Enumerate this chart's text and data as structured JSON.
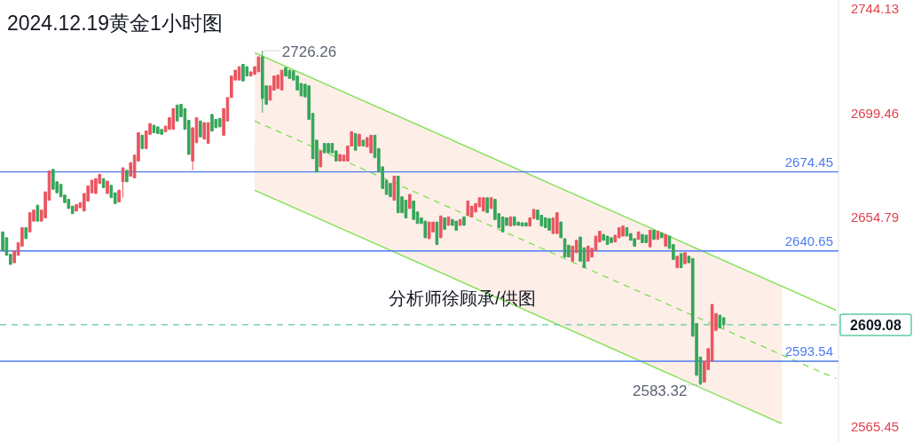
{
  "chart_data": {
    "type": "candlestick",
    "title": "2024.12.19黄金1小时图",
    "categories": [
      null,
      null,
      null,
      null,
      null,
      null,
      null,
      null,
      null,
      null,
      null,
      null,
      null,
      null,
      null,
      null,
      null,
      null,
      null,
      null,
      null,
      null,
      null,
      null,
      null,
      null,
      null,
      null,
      null,
      null,
      null,
      null,
      null,
      null,
      null,
      null,
      null,
      null,
      null,
      null,
      null,
      null,
      null,
      null,
      null,
      null,
      null,
      null,
      null,
      null,
      null,
      null,
      null,
      null,
      null,
      null,
      null,
      null,
      null,
      null,
      null,
      null,
      null,
      null,
      null,
      null,
      null,
      null,
      null,
      null,
      null,
      null,
      null,
      null,
      null,
      null,
      null,
      null,
      null,
      null,
      null,
      null,
      null,
      null,
      null,
      null,
      null,
      null,
      null,
      null,
      null,
      null,
      null,
      null,
      null,
      null,
      null,
      null,
      null,
      null,
      null,
      null,
      null,
      null,
      null,
      null,
      null,
      null,
      null,
      null,
      null,
      null,
      null,
      null,
      null,
      null,
      null,
      null,
      null,
      null,
      null,
      null,
      null,
      null,
      null,
      null,
      null,
      null,
      null,
      null,
      null,
      null,
      null,
      null,
      null,
      null,
      null,
      null,
      null,
      null,
      null,
      null,
      null,
      null,
      null,
      null,
      null,
      null,
      null,
      null,
      null,
      null,
      null,
      null,
      null,
      null,
      null,
      null,
      null,
      null,
      null,
      null,
      null,
      null,
      null,
      null,
      null,
      null,
      null,
      null,
      null,
      null,
      null,
      null,
      null,
      null,
      null,
      null,
      null,
      null,
      null,
      null,
      null,
      null,
      null,
      null,
      null,
      null,
      null,
      null,
      null,
      null,
      null,
      null,
      null,
      null,
      null,
      null,
      null,
      null,
      null,
      null,
      null,
      null,
      null,
      null,
      null,
      null,
      null,
      null,
      null,
      null,
      null,
      null,
      null,
      null
    ],
    "ohlc": [
      [
        2648.8,
        2648.8,
        2640.9,
        2640.9
      ],
      [
        2646.3,
        2646.3,
        2638.8,
        2638.8
      ],
      [
        2639.2,
        2639.2,
        2634.9,
        2634.9
      ],
      [
        2635.6,
        2640.6,
        2635.6,
        2640.6
      ],
      [
        2638.8,
        2644.2,
        2638.8,
        2644.2
      ],
      [
        2642.7,
        2650.6,
        2642.7,
        2650.6
      ],
      [
        2650.6,
        2650.6,
        2645.9,
        2645.9
      ],
      [
        2648.8,
        2657.0,
        2648.8,
        2657.0
      ],
      [
        2653.4,
        2658.1,
        2653.4,
        2658.1
      ],
      [
        2660.2,
        2660.2,
        2653.4,
        2653.4
      ],
      [
        2653.4,
        2658.1,
        2653.4,
        2658.1
      ],
      [
        2654.8,
        2665.9,
        2654.8,
        2665.9
      ],
      [
        2662.3,
        2674.8,
        2662.3,
        2674.8
      ],
      [
        2675.5,
        2675.5,
        2667.0,
        2667.0
      ],
      [
        2670.2,
        2670.2,
        2665.5,
        2665.5
      ],
      [
        2669.1,
        2669.1,
        2663.8,
        2663.8
      ],
      [
        2664.5,
        2664.5,
        2661.3,
        2661.3
      ],
      [
        2662.7,
        2662.7,
        2658.8,
        2658.8
      ],
      [
        2659.8,
        2659.8,
        2656.6,
        2656.6
      ],
      [
        2657.7,
        2660.5,
        2657.7,
        2660.5
      ],
      [
        2659.1,
        2661.3,
        2659.1,
        2661.3
      ],
      [
        2657.7,
        2665.2,
        2657.7,
        2665.2
      ],
      [
        2662.0,
        2668.4,
        2662.0,
        2668.4
      ],
      [
        2665.5,
        2670.9,
        2665.5,
        2670.9
      ],
      [
        2665.2,
        2671.6,
        2665.2,
        2671.6
      ],
      [
        2669.5,
        2673.4,
        2669.5,
        2673.4
      ],
      [
        2671.6,
        2671.6,
        2667.7,
        2667.7
      ],
      [
        2665.2,
        2670.5,
        2665.2,
        2670.5
      ],
      [
        2668.7,
        2668.7,
        2663.4,
        2663.4
      ],
      [
        2665.5,
        2665.5,
        2660.9,
        2660.9
      ],
      [
        2661.6,
        2666.6,
        2661.6,
        2666.6
      ],
      [
        2670.2,
        2676.2,
        2663.4,
        2676.2
      ],
      [
        2675.1,
        2675.1,
        2670.2,
        2670.2
      ],
      [
        2672.6,
        2678.4,
        2672.6,
        2678.4
      ],
      [
        2671.9,
        2681.6,
        2671.9,
        2681.6
      ],
      [
        2679.1,
        2691.2,
        2679.1,
        2691.2
      ],
      [
        2690.1,
        2690.1,
        2684.4,
        2684.4
      ],
      [
        2684.4,
        2691.9,
        2684.4,
        2691.9
      ],
      [
        2690.5,
        2695.1,
        2690.5,
        2695.1
      ],
      [
        2694.4,
        2694.4,
        2691.2,
        2691.2
      ],
      [
        2693.7,
        2693.7,
        2690.8,
        2690.8
      ],
      [
        2692.6,
        2692.6,
        2690.5,
        2690.5
      ],
      [
        2691.6,
        2694.0,
        2691.6,
        2694.0
      ],
      [
        2692.6,
        2697.6,
        2692.6,
        2697.6
      ],
      [
        2692.6,
        2701.5,
        2692.6,
        2701.5
      ],
      [
        2703.0,
        2703.0,
        2696.2,
        2696.2
      ],
      [
        2703.3,
        2703.3,
        2698.0,
        2698.0
      ],
      [
        2701.5,
        2701.5,
        2692.6,
        2692.6
      ],
      [
        2696.5,
        2696.5,
        2681.9,
        2681.9
      ],
      [
        2679.1,
        2693.3,
        2675.1,
        2693.3
      ],
      [
        2686.9,
        2697.6,
        2686.9,
        2697.6
      ],
      [
        2696.2,
        2696.2,
        2689.4,
        2689.4
      ],
      [
        2688.4,
        2695.5,
        2688.4,
        2695.5
      ],
      [
        2686.6,
        2695.5,
        2686.6,
        2695.5
      ],
      [
        2699.0,
        2699.0,
        2691.9,
        2691.9
      ],
      [
        2696.9,
        2696.9,
        2693.3,
        2693.3
      ],
      [
        2697.3,
        2697.3,
        2693.7,
        2693.7
      ],
      [
        2690.1,
        2701.5,
        2690.1,
        2701.5
      ],
      [
        2696.2,
        2706.2,
        2696.2,
        2706.2
      ],
      [
        2706.2,
        2715.4,
        2706.2,
        2715.4
      ],
      [
        2713.7,
        2717.9,
        2713.7,
        2717.9
      ],
      [
        2713.7,
        2719.4,
        2713.7,
        2719.4
      ],
      [
        2720.4,
        2720.4,
        2713.3,
        2713.3
      ],
      [
        2719.4,
        2719.4,
        2715.4,
        2715.4
      ],
      [
        2715.4,
        2717.2,
        2715.4,
        2717.2
      ],
      [
        2716.1,
        2719.4,
        2716.1,
        2719.4
      ],
      [
        2717.2,
        2723.6,
        2717.2,
        2723.6
      ],
      [
        2723.6,
        2726.26,
        2699.7,
        2705.8
      ],
      [
        2711.2,
        2711.2,
        2703.3,
        2703.3
      ],
      [
        2705.1,
        2711.2,
        2705.1,
        2711.2
      ],
      [
        2709.4,
        2715.4,
        2709.4,
        2715.4
      ],
      [
        2710.1,
        2715.8,
        2710.1,
        2715.8
      ],
      [
        2709.4,
        2717.9,
        2709.4,
        2717.9
      ],
      [
        2719.0,
        2719.0,
        2715.4,
        2715.4
      ],
      [
        2717.9,
        2717.9,
        2714.4,
        2714.4
      ],
      [
        2717.6,
        2717.6,
        2713.7,
        2713.7
      ],
      [
        2715.4,
        2715.4,
        2709.4,
        2709.4
      ],
      [
        2712.2,
        2712.2,
        2706.9,
        2706.9
      ],
      [
        2711.9,
        2711.9,
        2706.5,
        2706.5
      ],
      [
        2711.2,
        2711.2,
        2696.9,
        2696.9
      ],
      [
        2699.4,
        2699.4,
        2680.1,
        2680.1
      ],
      [
        2688.0,
        2688.0,
        2674.4,
        2674.4
      ],
      [
        2676.6,
        2683.4,
        2676.6,
        2683.4
      ],
      [
        2686.6,
        2686.6,
        2682.6,
        2682.6
      ],
      [
        2686.6,
        2686.6,
        2682.6,
        2682.6
      ],
      [
        2686.6,
        2686.6,
        2682.6,
        2682.6
      ],
      [
        2683.4,
        2683.4,
        2679.1,
        2679.1
      ],
      [
        2679.1,
        2681.9,
        2679.1,
        2681.9
      ],
      [
        2679.1,
        2681.6,
        2679.1,
        2681.6
      ],
      [
        2679.1,
        2685.5,
        2679.1,
        2685.5
      ],
      [
        2685.5,
        2691.6,
        2685.5,
        2691.6
      ],
      [
        2690.8,
        2690.8,
        2683.7,
        2683.7
      ],
      [
        2685.5,
        2690.5,
        2685.5,
        2690.5
      ],
      [
        2688.0,
        2688.0,
        2685.5,
        2685.5
      ],
      [
        2685.1,
        2689.1,
        2685.1,
        2689.1
      ],
      [
        2682.6,
        2690.1,
        2682.6,
        2690.1
      ],
      [
        2690.1,
        2690.1,
        2680.5,
        2680.5
      ],
      [
        2684.4,
        2684.4,
        2674.4,
        2674.4
      ],
      [
        2676.6,
        2676.6,
        2667.3,
        2667.3
      ],
      [
        2670.9,
        2670.9,
        2664.8,
        2664.8
      ],
      [
        2669.5,
        2669.5,
        2663.8,
        2663.8
      ],
      [
        2662.3,
        2672.6,
        2662.3,
        2672.6
      ],
      [
        2672.6,
        2672.6,
        2657.0,
        2657.0
      ],
      [
        2663.8,
        2663.8,
        2657.0,
        2657.0
      ],
      [
        2662.3,
        2662.3,
        2654.8,
        2654.8
      ],
      [
        2658.8,
        2664.8,
        2658.8,
        2664.8
      ],
      [
        2662.0,
        2662.0,
        2654.1,
        2654.1
      ],
      [
        2657.3,
        2657.3,
        2652.4,
        2652.4
      ],
      [
        2654.8,
        2654.8,
        2652.4,
        2652.4
      ],
      [
        2653.4,
        2653.4,
        2646.3,
        2646.3
      ],
      [
        2645.9,
        2653.0,
        2645.9,
        2653.0
      ],
      [
        2648.8,
        2653.0,
        2648.8,
        2653.0
      ],
      [
        2653.0,
        2653.0,
        2643.4,
        2643.4
      ],
      [
        2646.3,
        2655.6,
        2646.3,
        2655.6
      ],
      [
        2654.8,
        2654.8,
        2649.9,
        2649.9
      ],
      [
        2651.6,
        2655.2,
        2651.6,
        2655.2
      ],
      [
        2654.1,
        2654.1,
        2651.6,
        2651.6
      ],
      [
        2653.4,
        2653.4,
        2649.5,
        2649.5
      ],
      [
        2651.6,
        2654.1,
        2651.6,
        2654.1
      ],
      [
        2655.2,
        2655.2,
        2651.6,
        2651.6
      ],
      [
        2655.9,
        2662.0,
        2655.9,
        2662.0
      ],
      [
        2655.2,
        2659.8,
        2655.2,
        2659.8
      ],
      [
        2657.3,
        2660.9,
        2657.3,
        2660.9
      ],
      [
        2659.5,
        2663.4,
        2659.5,
        2663.4
      ],
      [
        2657.7,
        2663.4,
        2657.7,
        2663.4
      ],
      [
        2663.4,
        2663.4,
        2657.0,
        2657.0
      ],
      [
        2658.8,
        2663.4,
        2658.8,
        2663.4
      ],
      [
        2662.7,
        2662.7,
        2654.1,
        2654.1
      ],
      [
        2656.6,
        2656.6,
        2650.6,
        2650.6
      ],
      [
        2655.2,
        2655.2,
        2648.8,
        2648.8
      ],
      [
        2654.8,
        2654.8,
        2651.6,
        2651.6
      ],
      [
        2651.3,
        2655.2,
        2651.3,
        2655.2
      ],
      [
        2655.2,
        2655.2,
        2651.6,
        2651.6
      ],
      [
        2653.0,
        2653.0,
        2651.6,
        2651.6
      ],
      [
        2652.7,
        2652.7,
        2651.3,
        2651.3
      ],
      [
        2652.7,
        2652.7,
        2651.3,
        2651.3
      ],
      [
        2651.3,
        2654.8,
        2651.3,
        2654.8
      ],
      [
        2654.5,
        2658.4,
        2654.5,
        2658.4
      ],
      [
        2658.1,
        2658.1,
        2654.1,
        2654.1
      ],
      [
        2655.9,
        2655.9,
        2651.3,
        2651.3
      ],
      [
        2654.8,
        2654.8,
        2650.6,
        2650.6
      ],
      [
        2654.5,
        2654.5,
        2649.5,
        2649.5
      ],
      [
        2648.1,
        2654.8,
        2648.1,
        2654.8
      ],
      [
        2648.1,
        2657.0,
        2648.1,
        2657.0
      ],
      [
        2653.0,
        2653.0,
        2646.3,
        2646.3
      ],
      [
        2645.9,
        2645.9,
        2638.1,
        2638.1
      ],
      [
        2643.1,
        2643.1,
        2638.1,
        2638.1
      ],
      [
        2636.3,
        2642.7,
        2636.3,
        2642.7
      ],
      [
        2639.9,
        2645.2,
        2639.9,
        2645.2
      ],
      [
        2646.6,
        2646.6,
        2636.3,
        2636.3
      ],
      [
        2642.0,
        2642.0,
        2633.5,
        2633.5
      ],
      [
        2636.3,
        2642.7,
        2636.3,
        2642.7
      ],
      [
        2638.1,
        2641.7,
        2638.1,
        2641.7
      ],
      [
        2640.9,
        2647.0,
        2640.9,
        2647.0
      ],
      [
        2644.5,
        2649.1,
        2644.5,
        2649.1
      ],
      [
        2647.7,
        2647.7,
        2645.2,
        2645.2
      ],
      [
        2647.0,
        2647.0,
        2643.4,
        2643.4
      ],
      [
        2646.3,
        2646.3,
        2644.2,
        2644.2
      ],
      [
        2644.5,
        2647.4,
        2644.5,
        2647.4
      ],
      [
        2646.3,
        2650.6,
        2646.3,
        2650.6
      ],
      [
        2647.0,
        2651.3,
        2647.0,
        2651.3
      ],
      [
        2650.6,
        2650.6,
        2647.0,
        2647.0
      ],
      [
        2648.1,
        2648.1,
        2645.2,
        2645.2
      ],
      [
        2645.9,
        2645.9,
        2642.7,
        2642.7
      ],
      [
        2645.6,
        2648.8,
        2645.6,
        2648.8
      ],
      [
        2647.7,
        2647.7,
        2644.2,
        2644.2
      ],
      [
        2647.4,
        2647.4,
        2644.2,
        2644.2
      ],
      [
        2642.4,
        2649.5,
        2642.4,
        2649.5
      ],
      [
        2649.5,
        2649.5,
        2645.6,
        2645.6
      ],
      [
        2645.6,
        2649.1,
        2645.6,
        2649.1
      ],
      [
        2648.4,
        2648.4,
        2646.3,
        2646.3
      ],
      [
        2642.7,
        2647.7,
        2642.7,
        2647.7
      ],
      [
        2647.0,
        2647.0,
        2641.7,
        2641.7
      ],
      [
        2643.4,
        2643.4,
        2637.0,
        2637.0
      ],
      [
        2633.5,
        2638.4,
        2633.5,
        2638.4
      ],
      [
        2639.5,
        2639.5,
        2633.5,
        2633.5
      ],
      [
        2635.2,
        2639.9,
        2635.2,
        2639.9
      ],
      [
        2638.4,
        2638.4,
        2635.6,
        2635.6
      ],
      [
        2637.4,
        2637.4,
        2604.2,
        2604.2
      ],
      [
        2609.6,
        2609.6,
        2587.5,
        2587.5
      ],
      [
        2595.3,
        2595.3,
        2583.32,
        2583.9
      ],
      [
        2584.6,
        2593.5,
        2584.6,
        2593.5
      ],
      [
        2590.0,
        2598.9,
        2590.0,
        2598.9
      ],
      [
        2593.5,
        2617.8,
        2593.5,
        2617.8
      ],
      [
        2606.7,
        2613.9,
        2606.7,
        2613.9
      ],
      [
        2613.2,
        2613.2,
        2607.8,
        2607.8
      ],
      [
        2612.1,
        2612.1,
        2607.4,
        2609.08
      ],
      null,
      null,
      null,
      null,
      null,
      null,
      null,
      null,
      null,
      null,
      null,
      null,
      null,
      null,
      null,
      null,
      null,
      null,
      null,
      null,
      null,
      null,
      null,
      null,
      null,
      null,
      null,
      null,
      null
    ],
    "series": [
      {
        "type": "line",
        "color": "#7de04e",
        "line_style": "solid",
        "values": [
          null,
          null,
          null,
          null,
          null,
          null,
          null,
          null,
          null,
          null,
          null,
          null,
          null,
          null,
          null,
          null,
          null,
          null,
          null,
          null,
          null,
          null,
          null,
          null,
          null,
          null,
          null,
          null,
          null,
          null,
          null,
          null,
          null,
          null,
          null,
          null,
          null,
          null,
          null,
          null,
          null,
          null,
          null,
          null,
          null,
          null,
          null,
          null,
          null,
          null,
          null,
          null,
          null,
          null,
          null,
          null,
          null,
          null,
          null,
          null,
          null,
          null,
          null,
          null,
          null,
          2725.4,
          null,
          null,
          null,
          null,
          null,
          null,
          null,
          null,
          null,
          null,
          null,
          null,
          null,
          null,
          null,
          null,
          null,
          null,
          null,
          null,
          null,
          null,
          null,
          null,
          null,
          null,
          null,
          null,
          null,
          null,
          null,
          null,
          null,
          null,
          null,
          null,
          null,
          null,
          null,
          null,
          null,
          null,
          null,
          null,
          null,
          null,
          null,
          null,
          null,
          null,
          null,
          null,
          null,
          null,
          null,
          null,
          null,
          null,
          null,
          null,
          null,
          null,
          null,
          null,
          null,
          null,
          null,
          null,
          null,
          null,
          null,
          null,
          null,
          null,
          null,
          null,
          null,
          null,
          null,
          null,
          null,
          null,
          null,
          null,
          null,
          null,
          null,
          null,
          null,
          null,
          null,
          null,
          null,
          null,
          null,
          null,
          null,
          null,
          null,
          null,
          null,
          null,
          null,
          null,
          null,
          null,
          null,
          null,
          null,
          null,
          null,
          null,
          null,
          null,
          null,
          null,
          null,
          null,
          null,
          null,
          null,
          null,
          null,
          null,
          null,
          null,
          null,
          null,
          null,
          null,
          null,
          null,
          null,
          null,
          null,
          null,
          null,
          null,
          null,
          null,
          null,
          null,
          null,
          null,
          null,
          null,
          null,
          null,
          null,
          2615.3
        ]
      },
      {
        "type": "line",
        "color": "#7de04e",
        "line_style": "dashed",
        "values": [
          null,
          null,
          null,
          null,
          null,
          null,
          null,
          null,
          null,
          null,
          null,
          null,
          null,
          null,
          null,
          null,
          null,
          null,
          null,
          null,
          null,
          null,
          null,
          null,
          null,
          null,
          null,
          null,
          null,
          null,
          null,
          null,
          null,
          null,
          null,
          null,
          null,
          null,
          null,
          null,
          null,
          null,
          null,
          null,
          null,
          null,
          null,
          null,
          null,
          null,
          null,
          null,
          null,
          null,
          null,
          null,
          null,
          null,
          null,
          null,
          null,
          null,
          null,
          null,
          null,
          2696.2,
          null,
          null,
          null,
          null,
          null,
          null,
          null,
          null,
          null,
          null,
          null,
          null,
          null,
          null,
          null,
          null,
          null,
          null,
          null,
          null,
          null,
          null,
          null,
          null,
          null,
          null,
          null,
          null,
          null,
          null,
          null,
          null,
          null,
          null,
          null,
          null,
          null,
          null,
          null,
          null,
          null,
          null,
          null,
          null,
          null,
          null,
          null,
          null,
          null,
          null,
          null,
          null,
          null,
          null,
          null,
          null,
          null,
          null,
          null,
          null,
          null,
          null,
          null,
          null,
          null,
          null,
          null,
          null,
          null,
          null,
          null,
          null,
          null,
          null,
          null,
          null,
          null,
          null,
          null,
          null,
          null,
          null,
          null,
          null,
          null,
          null,
          null,
          null,
          null,
          null,
          null,
          null,
          null,
          null,
          null,
          null,
          null,
          null,
          null,
          null,
          null,
          null,
          null,
          null,
          null,
          null,
          null,
          null,
          null,
          null,
          null,
          null,
          null,
          null,
          null,
          null,
          null,
          null,
          null,
          null,
          null,
          null,
          null,
          null,
          null,
          null,
          null,
          null,
          null,
          null,
          null,
          null,
          null,
          null,
          null,
          2596.2,
          null,
          null,
          null,
          null,
          null,
          null,
          null,
          null,
          null,
          null,
          null,
          null,
          null,
          2586.1
        ],
        "upper": [
          null,
          null,
          null,
          null,
          null,
          null,
          null,
          null,
          null,
          null,
          null,
          null,
          null,
          null,
          null,
          null,
          null,
          null,
          null,
          null,
          null,
          null,
          null,
          null,
          null,
          null,
          null,
          null,
          null,
          null,
          null,
          null,
          null,
          null,
          null,
          null,
          null,
          null,
          null,
          null,
          null,
          null,
          null,
          null,
          null,
          null,
          null,
          null,
          null,
          null,
          null,
          null,
          null,
          null,
          null,
          null,
          null,
          null,
          null,
          null,
          null,
          null,
          null,
          null,
          null,
          2725.4,
          null,
          null,
          null,
          null,
          null,
          null,
          null,
          null,
          null,
          null,
          null,
          null,
          null,
          null,
          null,
          null,
          null,
          null,
          null,
          null,
          null,
          null,
          null,
          null,
          null,
          null,
          null,
          null,
          null,
          null,
          null,
          null,
          null,
          null,
          null,
          null,
          null,
          null,
          null,
          null,
          null,
          null,
          null,
          null,
          null,
          null,
          null,
          null,
          null,
          null,
          null,
          null,
          null,
          null,
          null,
          null,
          null,
          null,
          null,
          null,
          null,
          null,
          null,
          null,
          null,
          null,
          null,
          null,
          null,
          null,
          null,
          null,
          null,
          null,
          null,
          null,
          null,
          null,
          null,
          null,
          null,
          null,
          null,
          null,
          null,
          null,
          null,
          null,
          null,
          null,
          null,
          null,
          null,
          null,
          null,
          null,
          null,
          null,
          null,
          null,
          null,
          null,
          null,
          null,
          null,
          null,
          null,
          null,
          null,
          null,
          null,
          null,
          null,
          null,
          null,
          null,
          null,
          null,
          null,
          null,
          null,
          null,
          null,
          null,
          null,
          null,
          null,
          null,
          null,
          null,
          null,
          null,
          null,
          null,
          null,
          2625.4,
          null,
          null,
          null,
          null,
          null,
          null,
          null,
          null,
          null,
          null,
          null,
          null,
          null,
          null
        ],
        "lower": [
          null,
          null,
          null,
          null,
          null,
          null,
          null,
          null,
          null,
          null,
          null,
          null,
          null,
          null,
          null,
          null,
          null,
          null,
          null,
          null,
          null,
          null,
          null,
          null,
          null,
          null,
          null,
          null,
          null,
          null,
          null,
          null,
          null,
          null,
          null,
          null,
          null,
          null,
          null,
          null,
          null,
          null,
          null,
          null,
          null,
          null,
          null,
          null,
          null,
          null,
          null,
          null,
          null,
          null,
          null,
          null,
          null,
          null,
          null,
          null,
          null,
          null,
          null,
          null,
          null,
          2666.6,
          null,
          null,
          null,
          null,
          null,
          null,
          null,
          null,
          null,
          null,
          null,
          null,
          null,
          null,
          null,
          null,
          null,
          null,
          null,
          null,
          null,
          null,
          null,
          null,
          null,
          null,
          null,
          null,
          null,
          null,
          null,
          null,
          null,
          null,
          null,
          null,
          null,
          null,
          null,
          null,
          null,
          null,
          null,
          null,
          null,
          null,
          null,
          null,
          null,
          null,
          null,
          null,
          null,
          null,
          null,
          null,
          null,
          null,
          null,
          null,
          null,
          null,
          null,
          null,
          null,
          null,
          null,
          null,
          null,
          null,
          null,
          null,
          null,
          null,
          null,
          null,
          null,
          null,
          null,
          null,
          null,
          null,
          null,
          null,
          null,
          null,
          null,
          null,
          null,
          null,
          null,
          null,
          null,
          null,
          null,
          null,
          null,
          null,
          null,
          null,
          null,
          null,
          null,
          null,
          null,
          null,
          null,
          null,
          null,
          null,
          null,
          null,
          null,
          null,
          null,
          null,
          null,
          null,
          null,
          null,
          null,
          null,
          null,
          null,
          null,
          null,
          null,
          null,
          null,
          null,
          null,
          null,
          null,
          null,
          null,
          2566.8,
          null,
          null,
          null,
          null,
          null,
          null,
          null,
          null,
          null,
          null,
          null,
          null,
          null,
          null
        ]
      },
      {
        "type": "line",
        "color": "#7de04e",
        "line_style": "solid",
        "values": [
          null,
          null,
          null,
          null,
          null,
          null,
          null,
          null,
          null,
          null,
          null,
          null,
          null,
          null,
          null,
          null,
          null,
          null,
          null,
          null,
          null,
          null,
          null,
          null,
          null,
          null,
          null,
          null,
          null,
          null,
          null,
          null,
          null,
          null,
          null,
          null,
          null,
          null,
          null,
          null,
          null,
          null,
          null,
          null,
          null,
          null,
          null,
          null,
          null,
          null,
          null,
          null,
          null,
          null,
          null,
          null,
          null,
          null,
          null,
          null,
          null,
          null,
          null,
          null,
          null,
          2666.6,
          null,
          null,
          null,
          null,
          null,
          null,
          null,
          null,
          null,
          null,
          null,
          null,
          null,
          null,
          null,
          null,
          null,
          null,
          null,
          null,
          null,
          null,
          null,
          null,
          null,
          null,
          null,
          null,
          null,
          null,
          null,
          null,
          null,
          null,
          null,
          null,
          null,
          null,
          null,
          null,
          null,
          null,
          null,
          null,
          null,
          null,
          null,
          null,
          null,
          null,
          null,
          null,
          null,
          null,
          null,
          null,
          null,
          null,
          null,
          null,
          null,
          null,
          null,
          null,
          null,
          null,
          null,
          null,
          null,
          null,
          null,
          null,
          null,
          null,
          null,
          null,
          null,
          null,
          null,
          null,
          null,
          null,
          null,
          null,
          null,
          null,
          null,
          null,
          null,
          null,
          null,
          null,
          null,
          null,
          null,
          null,
          null,
          null,
          null,
          null,
          null,
          null,
          null,
          null,
          null,
          null,
          null,
          null,
          null,
          null,
          null,
          null,
          null,
          null,
          null,
          null,
          null,
          null,
          null,
          null,
          null,
          null,
          null,
          null,
          null,
          null,
          null,
          null,
          null,
          null,
          null,
          null,
          null,
          null,
          null,
          2566.8,
          null,
          null,
          null,
          null,
          null,
          null,
          null,
          null,
          null,
          null,
          null,
          null,
          null,
          null
        ]
      }
    ],
    "ylim": [
      2559.0,
      2747.9
    ],
    "yticks": [
      2744.13,
      2699.46,
      2654.79,
      2565.45
    ],
    "ref_lines": [
      {
        "axis": "y",
        "value": 2674.45,
        "label": "2674.45",
        "color": "#4d7cf2"
      },
      {
        "axis": "y",
        "value": 2640.65,
        "label": "2640.65",
        "color": "#4d7cf2"
      },
      {
        "axis": "y",
        "value": 2593.54,
        "label": "2593.54",
        "color": "#4d7cf2"
      },
      {
        "axis": "y",
        "value": 2609.08,
        "label": "2609.08",
        "color": "#5fcaa6",
        "line_style": "dashed"
      }
    ],
    "annotations": [
      "2726.26",
      "2583.32",
      "分析师徐顾承/供图"
    ]
  }
}
